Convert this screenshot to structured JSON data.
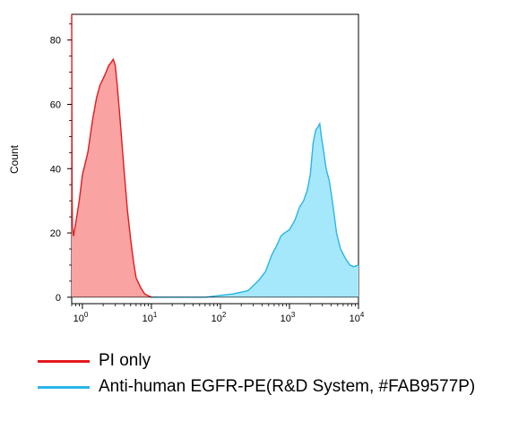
{
  "chart_data": {
    "type": "area",
    "ylabel": "Count",
    "xlabel": "",
    "x_scale": "log",
    "xlim": [
      0.7,
      10000
    ],
    "ylim": [
      -2,
      88
    ],
    "y_ticks": [
      0,
      20,
      40,
      60,
      80
    ],
    "x_ticks": [
      {
        "value": 1,
        "label": "10^0"
      },
      {
        "value": 10,
        "label": "10^1"
      },
      {
        "value": 100,
        "label": "10^2"
      },
      {
        "value": 1000,
        "label": "10^3"
      },
      {
        "value": 10000,
        "label": "10^4"
      }
    ],
    "series": [
      {
        "name": "PI only",
        "color": "#e31a1c",
        "fill": "#f9a3a3",
        "points": [
          [
            0.7,
            88
          ],
          [
            0.71,
            30
          ],
          [
            0.72,
            22
          ],
          [
            0.74,
            19
          ],
          [
            0.8,
            23
          ],
          [
            0.9,
            30
          ],
          [
            1.0,
            38
          ],
          [
            1.2,
            45
          ],
          [
            1.4,
            55
          ],
          [
            1.6,
            62
          ],
          [
            1.8,
            66
          ],
          [
            2.0,
            68
          ],
          [
            2.2,
            70
          ],
          [
            2.4,
            72
          ],
          [
            2.6,
            73
          ],
          [
            2.8,
            74
          ],
          [
            3.0,
            72
          ],
          [
            3.2,
            66
          ],
          [
            3.5,
            56
          ],
          [
            4.0,
            40
          ],
          [
            4.5,
            27
          ],
          [
            5.0,
            18
          ],
          [
            5.5,
            11
          ],
          [
            6.0,
            6
          ],
          [
            7.0,
            3
          ],
          [
            8.0,
            1
          ],
          [
            10.0,
            0
          ],
          [
            12.0,
            0
          ]
        ]
      },
      {
        "name": "Anti-human EGFR-PE(R&D System, #FAB9577P)",
        "color": "#29b5e8",
        "fill": "#a6e8fb",
        "points": [
          [
            10,
            0
          ],
          [
            60,
            0
          ],
          [
            150,
            1
          ],
          [
            250,
            2
          ],
          [
            350,
            5
          ],
          [
            450,
            8
          ],
          [
            550,
            13
          ],
          [
            650,
            16
          ],
          [
            750,
            19
          ],
          [
            850,
            20
          ],
          [
            1000,
            21
          ],
          [
            1200,
            24
          ],
          [
            1400,
            28
          ],
          [
            1600,
            30
          ],
          [
            1800,
            33
          ],
          [
            2000,
            38
          ],
          [
            2200,
            48
          ],
          [
            2400,
            52
          ],
          [
            2600,
            53
          ],
          [
            2750,
            54
          ],
          [
            2900,
            50
          ],
          [
            3100,
            46
          ],
          [
            3400,
            40
          ],
          [
            3800,
            36
          ],
          [
            4300,
            28
          ],
          [
            4800,
            20
          ],
          [
            5500,
            15
          ],
          [
            6500,
            12
          ],
          [
            7500,
            10
          ],
          [
            8500,
            9.5
          ],
          [
            10000,
            10
          ]
        ]
      }
    ]
  },
  "legend": [
    {
      "label": "PI only",
      "color": "#e31a1c"
    },
    {
      "label": "Anti-human EGFR-PE(R&D System, #FAB9577P)",
      "color": "#29b5e8"
    }
  ]
}
